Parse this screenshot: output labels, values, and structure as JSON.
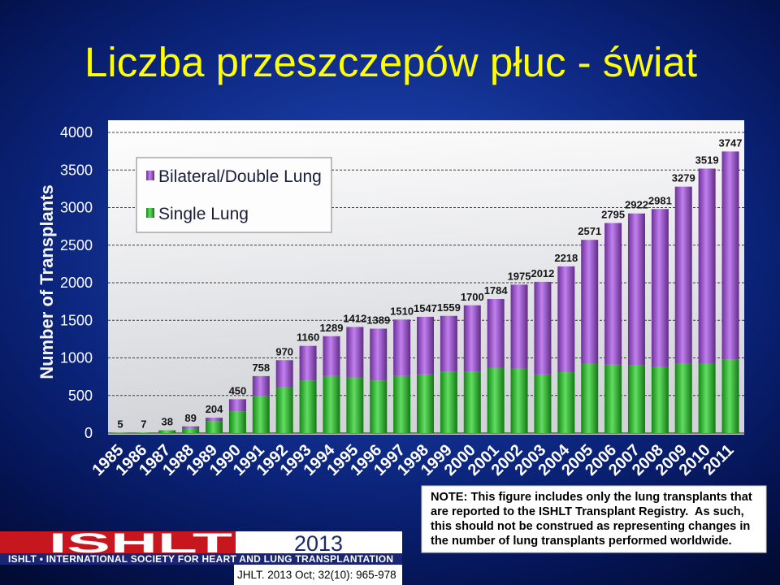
{
  "slide": {
    "title": "Liczba przeszczepów płuc - świat",
    "title_color": "#ffff00",
    "background_color": "#0b247a"
  },
  "chart_data": {
    "type": "bar",
    "stacked": true,
    "ylabel": "Number of Transplants",
    "ylim": [
      0,
      4000
    ],
    "yticks": [
      0,
      500,
      1000,
      1500,
      2000,
      2500,
      3000,
      3500,
      4000
    ],
    "grid": true,
    "legend_position": "top-left",
    "categories": [
      "1985",
      "1986",
      "1987",
      "1988",
      "1989",
      "1990",
      "1991",
      "1992",
      "1993",
      "1994",
      "1995",
      "1996",
      "1997",
      "1998",
      "1999",
      "2000",
      "2001",
      "2002",
      "2003",
      "2004",
      "2005",
      "2006",
      "2007",
      "2008",
      "2009",
      "2010",
      "2011"
    ],
    "series": [
      {
        "name": "Single Lung",
        "color": "#1fcf1f",
        "values": [
          5,
          7,
          35,
          60,
          160,
          290,
          490,
          610,
          700,
          760,
          740,
          700,
          760,
          780,
          820,
          820,
          870,
          860,
          780,
          810,
          920,
          910,
          900,
          880,
          930,
          920,
          980
        ]
      },
      {
        "name": "Bilateral/Double Lung",
        "color": "#a64ae8",
        "values": [
          0,
          0,
          3,
          29,
          44,
          160,
          268,
          360,
          460,
          529,
          672,
          689,
          750,
          767,
          739,
          880,
          914,
          1115,
          1232,
          1408,
          1651,
          1885,
          2022,
          2101,
          2349,
          2599,
          2767
        ]
      }
    ],
    "totals": [
      5,
      7,
      38,
      89,
      204,
      450,
      758,
      970,
      1160,
      1289,
      1412,
      1389,
      1510,
      1547,
      1559,
      1700,
      1784,
      1975,
      2012,
      2218,
      2571,
      2795,
      2922,
      2981,
      3279,
      3519,
      3747
    ]
  },
  "note": {
    "lines": [
      "NOTE: This figure includes only the lung transplants that",
      "are reported to the ISHLT Transplant Registry.  As such,",
      "this should not be construed as representing changes in",
      "the number of lung transplants performed worldwide."
    ]
  },
  "logo": {
    "wordmark": "ISHLT",
    "tagline": "ISHLT • INTERNATIONAL SOCIETY FOR HEART AND LUNG TRANSPLANTATION",
    "year": "2013",
    "red": "#c8161e",
    "navy": "#1a2673"
  },
  "citation": "JHLT. 2013 Oct; 32(10): 965-978"
}
